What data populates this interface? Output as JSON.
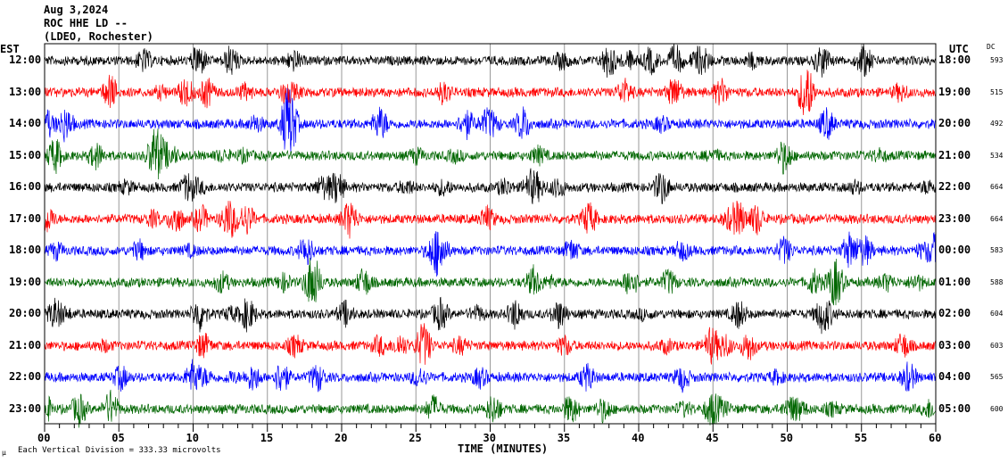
{
  "header": {
    "date": "Aug 3,2024",
    "station": "ROC HHE LD --",
    "network": "(LDEO, Rochester)"
  },
  "left_axis_title": "EST",
  "right_axis_title": "UTC",
  "dc_title": "DC",
  "footer": {
    "scale_icon": "μ",
    "scale_text": "Each Vertical Division =  333.33 microvolts"
  },
  "chart_data": {
    "type": "line",
    "title": "Aug 3,2024 ROC HHE LD -- (LDEO, Rochester)",
    "xlabel": "TIME (MINUTES)",
    "xlim": [
      0,
      60
    ],
    "x_ticks": [
      "00",
      "05",
      "10",
      "15",
      "20",
      "25",
      "30",
      "35",
      "40",
      "45",
      "50",
      "55",
      "60"
    ],
    "grid": true,
    "rows": [
      {
        "est": "12:00",
        "utc": "18:00",
        "dc": "593",
        "color": "#000000"
      },
      {
        "est": "13:00",
        "utc": "19:00",
        "dc": "515",
        "color": "#ff0000"
      },
      {
        "est": "14:00",
        "utc": "20:00",
        "dc": "492",
        "color": "#0000ff"
      },
      {
        "est": "15:00",
        "utc": "21:00",
        "dc": "534",
        "color": "#006600"
      },
      {
        "est": "16:00",
        "utc": "22:00",
        "dc": "664",
        "color": "#000000"
      },
      {
        "est": "17:00",
        "utc": "23:00",
        "dc": "664",
        "color": "#ff0000"
      },
      {
        "est": "18:00",
        "utc": "00:00",
        "dc": "583",
        "color": "#0000ff"
      },
      {
        "est": "19:00",
        "utc": "01:00",
        "dc": "588",
        "color": "#006600"
      },
      {
        "est": "20:00",
        "utc": "02:00",
        "dc": "604",
        "color": "#000000"
      },
      {
        "est": "21:00",
        "utc": "03:00",
        "dc": "603",
        "color": "#ff0000"
      },
      {
        "est": "22:00",
        "utc": "04:00",
        "dc": "565",
        "color": "#0000ff"
      },
      {
        "est": "23:00",
        "utc": "05:00",
        "dc": "600",
        "color": "#006600"
      }
    ]
  }
}
